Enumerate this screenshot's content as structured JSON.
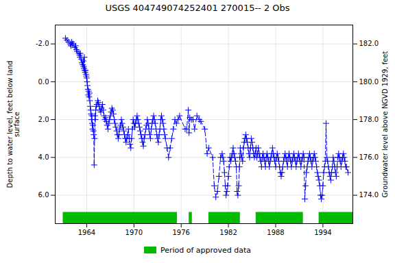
{
  "chart_data": {
    "type": "line",
    "title": "USGS 404749074252401 270015-- 2 Obs",
    "y_label": "Depth to water level, feet below land\nsurface",
    "y2_label": "Groundwater level above NGVD 1929, feet",
    "color": "#0000FF",
    "marker": "plus",
    "line_style": "dashed",
    "grid": true,
    "xlim": [
      1960.0,
      1997.8
    ],
    "xticks": [
      1964,
      1970,
      1976,
      1982,
      1988,
      1994
    ],
    "ylim": [
      -3.0,
      7.5
    ],
    "yticks": [
      {
        "value": -2.0,
        "label": "-2.0"
      },
      {
        "value": 0.0,
        "label": "0.0"
      },
      {
        "value": 2.0,
        "label": "2.0"
      },
      {
        "value": 4.0,
        "label": "4.0"
      },
      {
        "value": 6.0,
        "label": "6.0"
      }
    ],
    "y2lim": [
      172.5,
      183.0
    ],
    "y2ticks": [
      {
        "value": 182.0,
        "label": "182.0"
      },
      {
        "value": 180.0,
        "label": "180.0"
      },
      {
        "value": 178.0,
        "label": "178.0"
      },
      {
        "value": 176.0,
        "label": "176.0"
      },
      {
        "value": 174.0,
        "label": "174.0"
      }
    ],
    "spans": {
      "name": "Period of approved data",
      "color": "#00bb00",
      "ranges": [
        [
          1961.0,
          1975.5
        ],
        [
          1977.0,
          1977.4
        ],
        [
          1979.5,
          1983.5
        ],
        [
          1985.5,
          1991.5
        ],
        [
          1993.5,
          1997.8
        ]
      ]
    },
    "x": [
      1961.3,
      1961.5,
      1961.7,
      1961.9,
      1962.0,
      1962.1,
      1962.2,
      1962.3,
      1962.5,
      1962.6,
      1962.7,
      1962.8,
      1963.0,
      1963.1,
      1963.15,
      1963.2,
      1963.3,
      1963.4,
      1963.5,
      1963.55,
      1963.6,
      1963.65,
      1963.7,
      1963.75,
      1963.8,
      1963.85,
      1963.9,
      1963.95,
      1964.0,
      1964.05,
      1964.1,
      1964.15,
      1964.2,
      1964.25,
      1964.3,
      1964.35,
      1964.4,
      1964.45,
      1964.5,
      1964.55,
      1964.6,
      1964.65,
      1964.7,
      1964.75,
      1964.8,
      1964.85,
      1964.9,
      1964.95,
      1965.0,
      1965.05,
      1965.1,
      1965.15,
      1965.2,
      1965.3,
      1965.4,
      1965.5,
      1965.6,
      1965.7,
      1965.8,
      1965.9,
      1966.0,
      1966.1,
      1966.2,
      1966.3,
      1966.4,
      1966.5,
      1966.6,
      1966.7,
      1966.8,
      1966.9,
      1967.0,
      1967.1,
      1967.2,
      1967.3,
      1967.4,
      1967.5,
      1967.6,
      1967.7,
      1967.8,
      1967.9,
      1968.0,
      1968.1,
      1968.2,
      1968.3,
      1968.4,
      1968.5,
      1968.6,
      1968.7,
      1968.8,
      1968.9,
      1969.0,
      1969.1,
      1969.2,
      1969.3,
      1969.4,
      1969.5,
      1969.6,
      1969.7,
      1969.8,
      1969.9,
      1970.0,
      1970.1,
      1970.2,
      1970.3,
      1970.4,
      1970.5,
      1970.6,
      1970.7,
      1970.8,
      1970.9,
      1971.0,
      1971.1,
      1971.2,
      1971.3,
      1971.4,
      1971.5,
      1971.6,
      1971.7,
      1971.8,
      1971.9,
      1972.0,
      1972.1,
      1972.2,
      1972.3,
      1972.4,
      1972.5,
      1972.6,
      1972.7,
      1972.8,
      1972.9,
      1973.0,
      1973.1,
      1973.2,
      1973.3,
      1973.4,
      1973.5,
      1973.6,
      1973.7,
      1973.8,
      1973.9,
      1974.0,
      1974.2,
      1974.4,
      1974.6,
      1974.8,
      1975.0,
      1975.2,
      1975.4,
      1975.6,
      1975.8,
      1976.5,
      1976.7,
      1976.9,
      1977.0,
      1977.1,
      1977.3,
      1977.5,
      1977.7,
      1978.0,
      1978.3,
      1978.5,
      1979.0,
      1979.3,
      1979.5,
      1980.0,
      1980.2,
      1980.4,
      1980.6,
      1980.8,
      1981.0,
      1981.2,
      1981.3,
      1981.4,
      1981.5,
      1981.6,
      1981.7,
      1981.8,
      1981.9,
      1982.0,
      1982.1,
      1982.2,
      1982.3,
      1982.4,
      1982.5,
      1982.6,
      1982.7,
      1982.8,
      1982.9,
      1983.0,
      1983.1,
      1983.2,
      1983.3,
      1983.4,
      1983.45,
      1983.5,
      1983.6,
      1983.7,
      1983.8,
      1983.9,
      1984.0,
      1984.1,
      1984.2,
      1984.3,
      1984.4,
      1984.5,
      1984.6,
      1984.7,
      1984.8,
      1984.9,
      1985.0,
      1985.1,
      1985.2,
      1985.3,
      1985.4,
      1985.5,
      1985.6,
      1985.7,
      1985.8,
      1985.9,
      1986.0,
      1986.1,
      1986.2,
      1986.3,
      1986.4,
      1986.5,
      1986.6,
      1986.7,
      1986.8,
      1986.9,
      1987.0,
      1987.1,
      1987.2,
      1987.3,
      1987.4,
      1987.5,
      1987.6,
      1987.7,
      1987.8,
      1987.9,
      1988.0,
      1988.1,
      1988.2,
      1988.3,
      1988.4,
      1988.5,
      1988.6,
      1988.7,
      1988.8,
      1988.9,
      1989.0,
      1989.1,
      1989.2,
      1989.3,
      1989.4,
      1989.5,
      1989.6,
      1989.7,
      1989.8,
      1989.9,
      1990.0,
      1990.1,
      1990.2,
      1990.3,
      1990.4,
      1990.5,
      1990.6,
      1990.7,
      1990.8,
      1990.9,
      1991.0,
      1991.1,
      1991.2,
      1991.3,
      1991.4,
      1991.5,
      1991.6,
      1991.7,
      1991.8,
      1991.9,
      1992.0,
      1992.1,
      1992.2,
      1992.3,
      1992.4,
      1992.5,
      1992.6,
      1992.7,
      1992.8,
      1992.9,
      1993.0,
      1993.1,
      1993.2,
      1993.3,
      1993.4,
      1993.5,
      1993.6,
      1993.7,
      1993.8,
      1993.9,
      1994.0,
      1994.1,
      1994.2,
      1994.3,
      1994.4,
      1994.5,
      1994.6,
      1994.7,
      1994.8,
      1994.9,
      1995.0,
      1995.1,
      1995.2,
      1995.3,
      1995.4,
      1995.5,
      1995.6,
      1995.7,
      1995.8,
      1995.9,
      1996.0,
      1996.1,
      1996.2,
      1996.3,
      1996.4,
      1996.5,
      1996.6,
      1996.7,
      1996.8,
      1996.9,
      1997.0,
      1997.2
    ],
    "values": [
      -2.3,
      -2.2,
      -2.1,
      -2.0,
      -1.9,
      -2.1,
      -2.0,
      -2.0,
      -1.8,
      -1.9,
      -1.7,
      -1.6,
      -1.5,
      -1.4,
      -1.3,
      -1.5,
      -1.2,
      -1.0,
      -0.9,
      -1.1,
      -0.8,
      -0.7,
      -1.3,
      -0.6,
      -0.5,
      -0.6,
      -0.4,
      -0.3,
      -0.2,
      0.0,
      0.2,
      0.4,
      0.7,
      0.5,
      0.8,
      0.6,
      1.0,
      1.3,
      1.5,
      1.7,
      2.0,
      1.8,
      2.2,
      2.5,
      2.3,
      2.6,
      2.8,
      4.4,
      3.0,
      1.8,
      2.0,
      1.5,
      1.3,
      1.2,
      1.0,
      1.1,
      1.3,
      1.5,
      1.6,
      1.4,
      1.2,
      1.5,
      1.8,
      2.0,
      1.9,
      2.1,
      2.3,
      2.5,
      2.2,
      2.0,
      1.8,
      1.6,
      1.4,
      1.5,
      1.7,
      2.0,
      2.2,
      2.4,
      2.6,
      2.8,
      3.0,
      2.8,
      2.5,
      2.3,
      2.0,
      2.2,
      2.4,
      2.6,
      2.8,
      3.0,
      3.2,
      3.0,
      2.8,
      2.5,
      3.0,
      3.3,
      3.5,
      3.0,
      2.5,
      2.0,
      2.2,
      2.4,
      2.2,
      2.0,
      1.8,
      2.0,
      2.2,
      2.4,
      2.6,
      2.8,
      3.0,
      3.2,
      3.4,
      3.0,
      2.8,
      2.5,
      2.3,
      2.0,
      2.2,
      2.5,
      2.8,
      3.0,
      2.5,
      2.2,
      2.0,
      1.8,
      2.0,
      2.2,
      2.5,
      2.8,
      3.0,
      3.2,
      2.8,
      2.5,
      2.0,
      1.8,
      2.0,
      2.2,
      2.5,
      2.8,
      3.0,
      3.5,
      4.0,
      3.5,
      3.0,
      2.5,
      2.0,
      2.2,
      2.0,
      1.8,
      2.5,
      2.5,
      1.5,
      2.7,
      1.9,
      2.0,
      2.0,
      2.5,
      1.8,
      2.0,
      2.1,
      2.5,
      3.8,
      3.5,
      4.0,
      5.5,
      6.1,
      5.8,
      5.0,
      4.0,
      3.8,
      4.0,
      4.2,
      4.8,
      5.5,
      6.0,
      5.8,
      5.5,
      5.0,
      4.5,
      4.0,
      4.2,
      4.0,
      3.8,
      3.5,
      3.8,
      4.0,
      4.2,
      4.5,
      5.8,
      6.0,
      5.5,
      4.5,
      4.0,
      3.5,
      3.8,
      4.0,
      4.2,
      3.5,
      3.2,
      3.0,
      2.8,
      3.0,
      3.2,
      3.5,
      3.8,
      4.0,
      3.5,
      3.0,
      3.2,
      3.5,
      3.8,
      4.0,
      3.8,
      3.5,
      4.0,
      3.8,
      3.5,
      3.8,
      4.0,
      4.2,
      4.5,
      4.0,
      3.8,
      4.0,
      4.2,
      4.5,
      4.0,
      3.8,
      4.0,
      4.2,
      4.5,
      4.2,
      4.0,
      3.8,
      3.5,
      3.8,
      4.0,
      4.2,
      4.5,
      4.0,
      3.8,
      4.0,
      4.2,
      4.5,
      4.8,
      5.0,
      4.8,
      4.5,
      4.2,
      4.0,
      3.8,
      4.0,
      4.2,
      4.5,
      4.0,
      3.8,
      4.0,
      4.2,
      4.5,
      4.2,
      4.0,
      3.8,
      4.0,
      4.2,
      4.5,
      4.2,
      4.0,
      3.8,
      4.0,
      4.2,
      4.5,
      4.2,
      4.0,
      3.8,
      4.0,
      6.2,
      5.5,
      4.8,
      4.5,
      4.2,
      4.0,
      3.8,
      4.0,
      4.2,
      4.5,
      4.2,
      4.0,
      3.8,
      4.0,
      4.2,
      4.5,
      4.8,
      5.0,
      5.2,
      5.5,
      6.0,
      6.2,
      6.0,
      5.5,
      4.8,
      4.5,
      4.2,
      2.2,
      4.0,
      4.2,
      4.5,
      4.8,
      5.0,
      5.2,
      4.8,
      4.5,
      4.0,
      4.2,
      4.5,
      4.8,
      5.0,
      4.5,
      4.0,
      3.8,
      4.0,
      4.2,
      4.5,
      4.2,
      4.0,
      3.8,
      4.0,
      4.2,
      4.5,
      4.5,
      4.8
    ]
  }
}
